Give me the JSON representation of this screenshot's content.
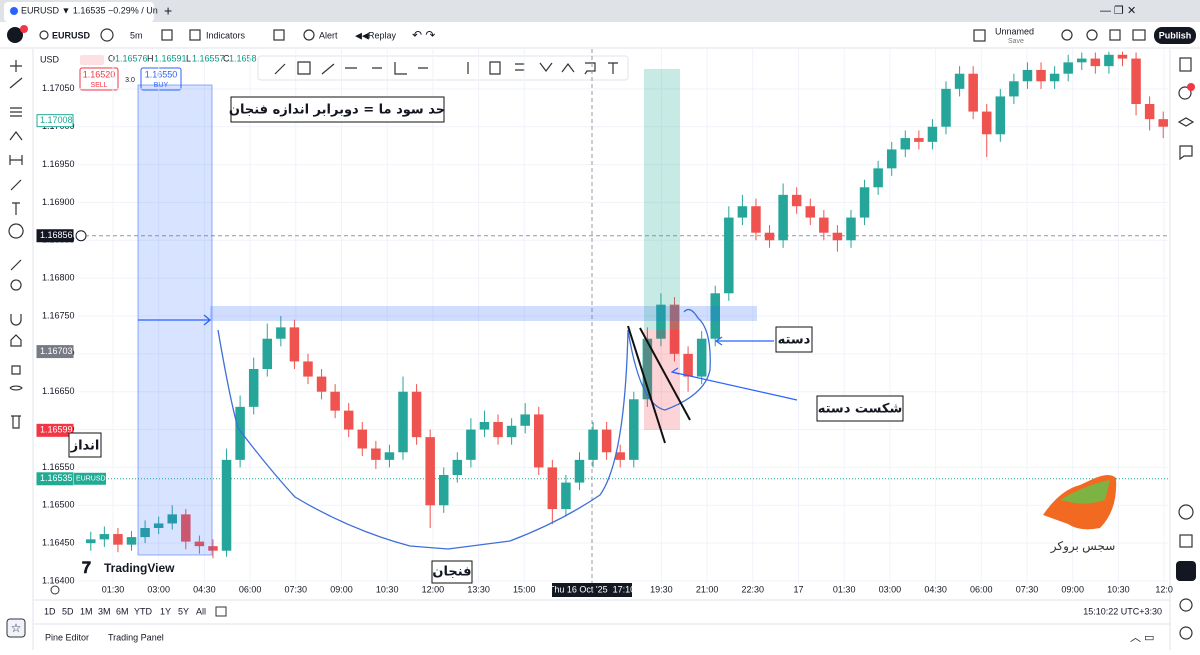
{
  "browser_tab": {
    "title": "EURUSD ▼ 1.16535 −0.29% / Un"
  },
  "toolbar": {
    "symbol": "EURUSD",
    "interval": "5m",
    "indicators": "Indicators",
    "alert": "Alert",
    "replay": "Replay",
    "layout_name": "Unnamed",
    "save": "Save",
    "publish": "Publish"
  },
  "legend": {
    "currency": "USD",
    "open_key": "O",
    "open": "1.16576",
    "high_key": "H",
    "high": "1.16591",
    "low_key": "L",
    "low": "1.16557",
    "close_key": "C",
    "close": "1.1658",
    "sell_price": "1.16520",
    "sell": "SELL",
    "spread": "3.0",
    "buy_price": "1.16550",
    "buy": "BUY"
  },
  "chart_data": {
    "type": "candlestick",
    "up_color": "#26a69a",
    "down_color": "#ef5350",
    "open": [
      1.1645,
      1.16455,
      1.16462,
      1.16448,
      1.16458,
      1.1647,
      1.16476,
      1.16488,
      1.16452,
      1.16446,
      1.1644,
      1.1656,
      1.1663,
      1.1668,
      1.1672,
      1.16735,
      1.1669,
      1.1667,
      1.1665,
      1.16625,
      1.166,
      1.16575,
      1.1656,
      1.1657,
      1.1665,
      1.1659,
      1.165,
      1.1654,
      1.1656,
      1.166,
      1.1661,
      1.1659,
      1.16605,
      1.1662,
      1.1655,
      1.16495,
      1.1653,
      1.1656,
      1.166,
      1.1657,
      1.1656,
      1.1664,
      1.1672,
      1.16765,
      1.167,
      1.1667,
      1.1672,
      1.1678,
      1.1688,
      1.16895,
      1.1686,
      1.1685,
      1.1691,
      1.16895,
      1.1688,
      1.1686,
      1.1685,
      1.1688,
      1.1692,
      1.16945,
      1.1697,
      1.16985,
      1.1698,
      1.17,
      1.1705,
      1.1707,
      1.1702,
      1.1699,
      1.1704,
      1.1706,
      1.17075,
      1.1706,
      1.1707,
      1.17085,
      1.1709,
      1.1708,
      1.17095,
      1.1709,
      1.1703,
      1.1701
    ],
    "high": [
      1.16465,
      1.16472,
      1.1647,
      1.16466,
      1.1648,
      1.16485,
      1.165,
      1.16495,
      1.1646,
      1.16455,
      1.16575,
      1.16645,
      1.16695,
      1.1674,
      1.1675,
      1.16745,
      1.167,
      1.1668,
      1.1666,
      1.16635,
      1.1661,
      1.16585,
      1.1658,
      1.1667,
      1.1666,
      1.166,
      1.1655,
      1.1657,
      1.16615,
      1.16625,
      1.1662,
      1.16615,
      1.16635,
      1.1663,
      1.1656,
      1.1654,
      1.1657,
      1.1661,
      1.1661,
      1.1658,
      1.1665,
      1.16735,
      1.1678,
      1.16775,
      1.1671,
      1.1673,
      1.1679,
      1.16895,
      1.1691,
      1.16905,
      1.1687,
      1.16925,
      1.1692,
      1.16905,
      1.1689,
      1.1687,
      1.1689,
      1.1693,
      1.16955,
      1.1698,
      1.16995,
      1.16995,
      1.1701,
      1.1706,
      1.1708,
      1.1708,
      1.1703,
      1.1705,
      1.1707,
      1.17085,
      1.17085,
      1.1708,
      1.17095,
      1.17098,
      1.17098,
      1.17099,
      1.17099,
      1.17098,
      1.1704,
      1.1702
    ],
    "low": [
      1.1644,
      1.16445,
      1.16438,
      1.1644,
      1.1645,
      1.16462,
      1.16468,
      1.16442,
      1.16436,
      1.1643,
      1.16432,
      1.1655,
      1.1662,
      1.1667,
      1.1671,
      1.1668,
      1.1666,
      1.1664,
      1.16615,
      1.1659,
      1.16565,
      1.16548,
      1.1655,
      1.1656,
      1.1658,
      1.1647,
      1.1649,
      1.1653,
      1.1655,
      1.1659,
      1.1658,
      1.1658,
      1.16595,
      1.1654,
      1.16475,
      1.16485,
      1.1652,
      1.1655,
      1.1656,
      1.1655,
      1.1655,
      1.1663,
      1.1671,
      1.1669,
      1.1665,
      1.1666,
      1.1671,
      1.1677,
      1.1687,
      1.1685,
      1.1684,
      1.1684,
      1.16885,
      1.1687,
      1.1685,
      1.16835,
      1.1684,
      1.1687,
      1.1691,
      1.16935,
      1.1696,
      1.1697,
      1.1697,
      1.1699,
      1.1704,
      1.1701,
      1.1696,
      1.1698,
      1.1703,
      1.1705,
      1.1705,
      1.1705,
      1.1706,
      1.17075,
      1.1707,
      1.1707,
      1.1708,
      1.17015,
      1.16995,
      1.16985
    ],
    "close": [
      1.16455,
      1.16462,
      1.16448,
      1.16458,
      1.1647,
      1.16476,
      1.16488,
      1.16452,
      1.16446,
      1.1644,
      1.1656,
      1.1663,
      1.1668,
      1.1672,
      1.16735,
      1.1669,
      1.1667,
      1.1665,
      1.16625,
      1.166,
      1.16575,
      1.1656,
      1.1657,
      1.1665,
      1.1659,
      1.165,
      1.1654,
      1.1656,
      1.166,
      1.1661,
      1.1659,
      1.16605,
      1.1662,
      1.1655,
      1.16495,
      1.1653,
      1.1656,
      1.166,
      1.1657,
      1.1656,
      1.1664,
      1.1672,
      1.16765,
      1.167,
      1.1667,
      1.1672,
      1.1678,
      1.1688,
      1.16895,
      1.1686,
      1.1685,
      1.1691,
      1.16895,
      1.1688,
      1.1686,
      1.1685,
      1.1688,
      1.1692,
      1.16945,
      1.1697,
      1.16985,
      1.1698,
      1.17,
      1.1705,
      1.1707,
      1.1702,
      1.1699,
      1.1704,
      1.1706,
      1.17075,
      1.1706,
      1.1707,
      1.17085,
      1.1709,
      1.1708,
      1.17095,
      1.1709,
      1.1703,
      1.1701,
      1.17
    ],
    "ylim": [
      1.164,
      1.171
    ],
    "yticks": [
      {
        "value": 1.164,
        "label": "1.16400"
      },
      {
        "value": 1.1645,
        "label": "1.16450"
      },
      {
        "value": 1.165,
        "label": "1.16500"
      },
      {
        "value": 1.1655,
        "label": "1.16550"
      },
      {
        "value": 1.166,
        "label": "1.16600"
      },
      {
        "value": 1.1665,
        "label": "1.16650"
      },
      {
        "value": 1.167,
        "label": "1.16700"
      },
      {
        "value": 1.1675,
        "label": "1.16750"
      },
      {
        "value": 1.168,
        "label": "1.16800"
      },
      {
        "value": 1.1685,
        "label": "1.16850"
      },
      {
        "value": 1.169,
        "label": "1.16900"
      },
      {
        "value": 1.1695,
        "label": "1.16950"
      },
      {
        "value": 1.17,
        "label": "1.17000"
      },
      {
        "value": 1.1705,
        "label": "1.17050"
      }
    ],
    "x_labels": [
      "01:30",
      "03:00",
      "04:30",
      "06:00",
      "07:30",
      "09:00",
      "10:30",
      "12:00",
      "13:30",
      "15:00",
      null,
      null,
      "19:30",
      "21:00",
      "22:30",
      "17",
      "01:30",
      "03:00",
      "04:30",
      "06:00",
      "07:30",
      "09:00",
      "10:30",
      "12:0"
    ],
    "crosshair_time": "Thu 16 Oct '25  17:10",
    "price_labels": [
      {
        "value": 1.17008,
        "label": "1.17008",
        "color": "#22ab94"
      },
      {
        "value": 1.16856,
        "label": "1.16856",
        "color": "#131722"
      },
      {
        "value": 1.16703,
        "label": "1.16703",
        "color": "#787b86"
      },
      {
        "value": 1.16599,
        "label": "1.16599",
        "color": "#f23645"
      },
      {
        "value": 1.16535,
        "label": "1.16535",
        "color": "#22ab94"
      }
    ],
    "last_price_symbol": "EURUSD",
    "grid": true
  },
  "annotations": {
    "target": "حد سود ما = دوبرابر اندازه فنجان",
    "size": "انداز",
    "cup": "فنجان",
    "handle": "دسته",
    "handle_break": "شکست دسته",
    "watermark": "سجس بروکر",
    "logo": "TradingView"
  },
  "bottom_bar": {
    "ranges": [
      "1D",
      "5D",
      "1M",
      "3M",
      "6M",
      "YTD",
      "1Y",
      "5Y",
      "All"
    ],
    "clock": "15:10:22 UTC+3:30",
    "pine_editor": "Pine Editor",
    "trading_panel": "Trading Panel"
  }
}
